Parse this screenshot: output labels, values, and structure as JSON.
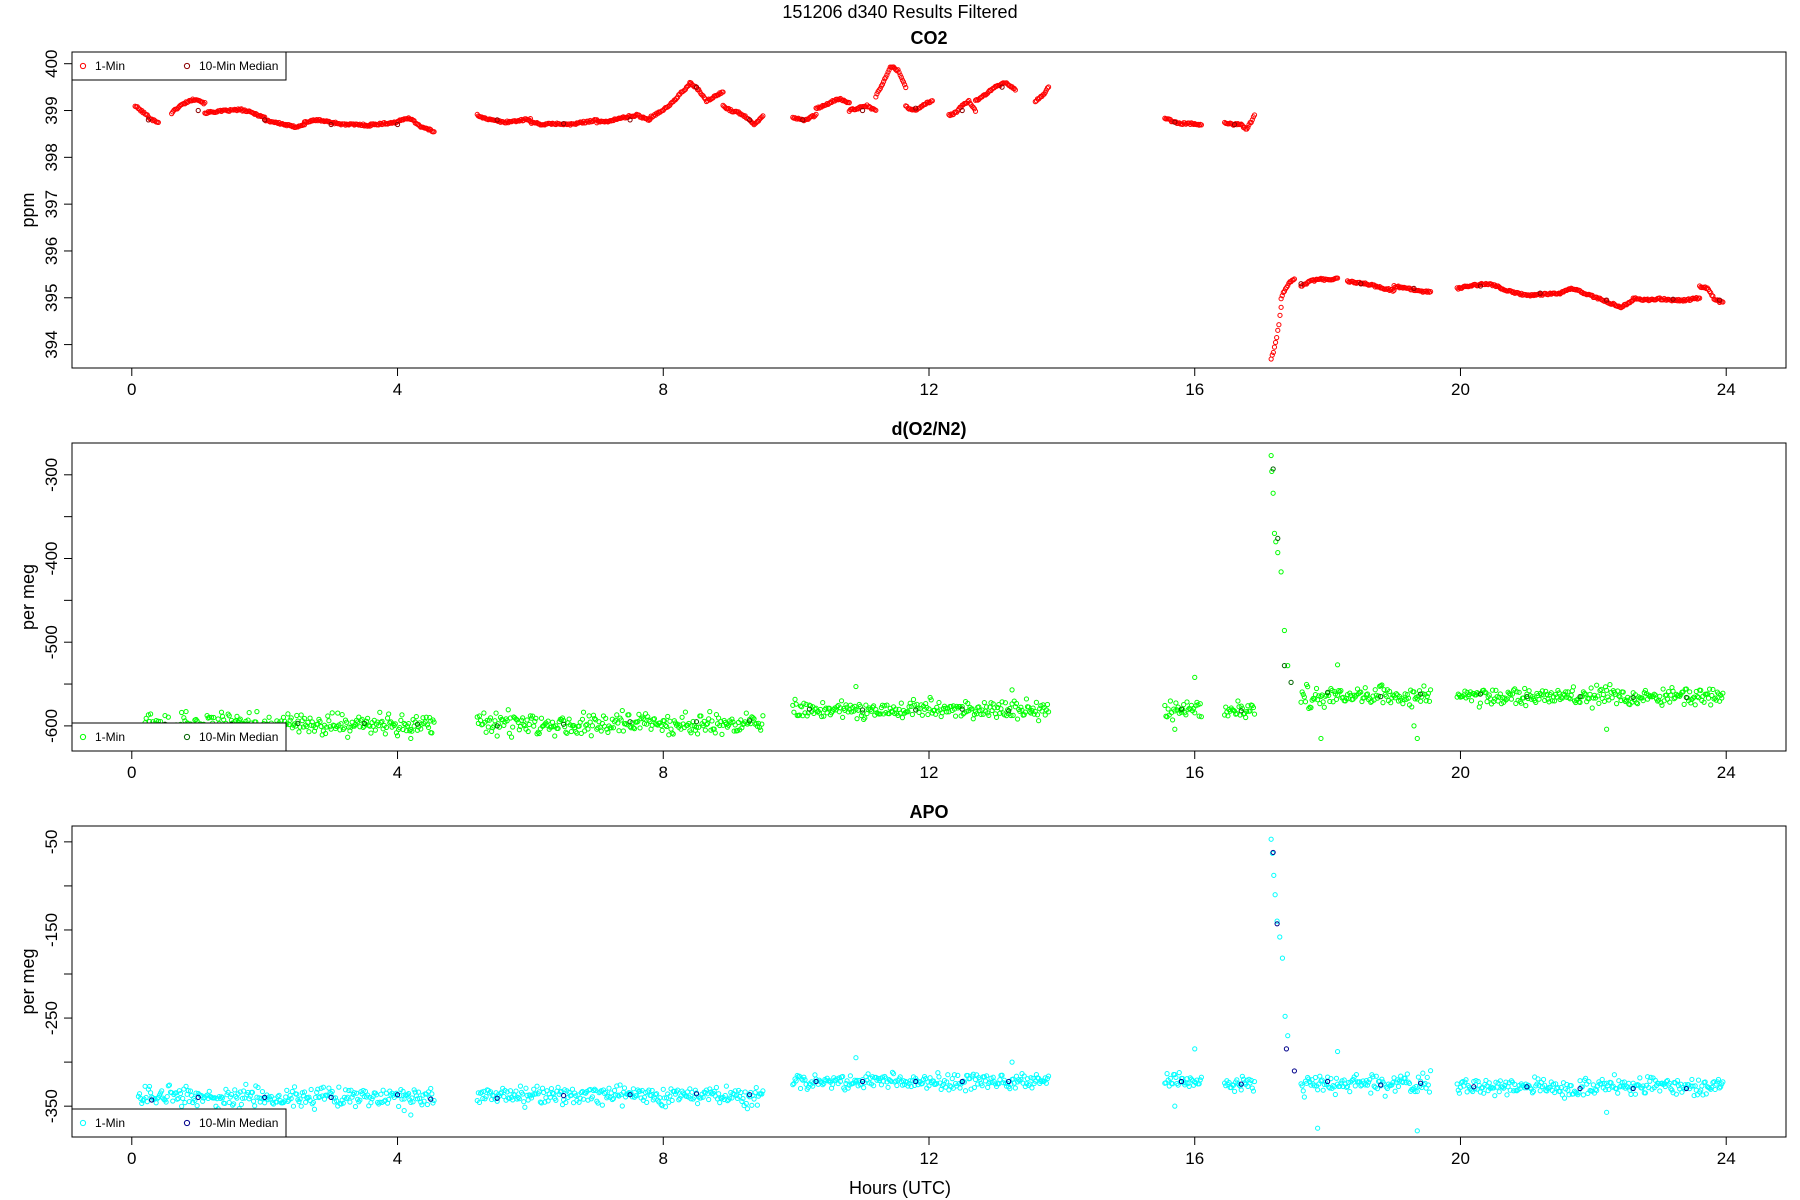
{
  "figure": {
    "title": "151206   d340   Results Filtered",
    "xlabel": "Hours (UTC)",
    "background": "#ffffff"
  },
  "chart_data": [
    {
      "type": "scatter",
      "title": "CO2",
      "xlabel": "",
      "ylabel": "ppm",
      "xlim": [
        -0.9,
        24.9
      ],
      "ylim": [
        393.5,
        400.25
      ],
      "x_ticks": [
        0,
        4,
        8,
        12,
        16,
        20,
        24
      ],
      "y_ticks": [
        394,
        395,
        396,
        397,
        398,
        399,
        400
      ],
      "legend": {
        "position": "top-left",
        "entries": [
          {
            "label": "1-Min",
            "color": "#ff0000"
          },
          {
            "label": "10-Min Median",
            "color": "#8b0000"
          }
        ]
      },
      "series": [
        {
          "name": "1-Min",
          "color": "#ff0000",
          "marker": "open-circle",
          "segments": [
            {
              "x0": 0.05,
              "x1": 0.4,
              "y": [
                399.1,
                399.0,
                398.9,
                398.8,
                398.75
              ]
            },
            {
              "x0": 0.6,
              "x1": 1.1,
              "y": [
                398.95,
                399.1,
                399.2,
                399.25,
                399.15
              ]
            },
            {
              "x0": 1.1,
              "x1": 2.0,
              "y": [
                398.95,
                398.98,
                399.0,
                399.02,
                398.95,
                398.85
              ]
            },
            {
              "x0": 2.0,
              "x1": 2.6,
              "y": [
                398.8,
                398.75,
                398.7,
                398.65,
                398.7
              ]
            },
            {
              "x0": 2.6,
              "x1": 3.6,
              "y": [
                398.75,
                398.8,
                398.75,
                398.7,
                398.7,
                398.68
              ]
            },
            {
              "x0": 3.6,
              "x1": 4.55,
              "y": [
                398.7,
                398.72,
                398.75,
                398.85,
                398.65,
                398.55
              ]
            },
            {
              "x0": 5.2,
              "x1": 6.0,
              "y": [
                398.9,
                398.8,
                398.75,
                398.78,
                398.82
              ]
            },
            {
              "x0": 6.0,
              "x1": 7.0,
              "y": [
                398.75,
                398.7,
                398.72,
                398.7,
                398.75,
                398.8
              ]
            },
            {
              "x0": 7.0,
              "x1": 7.8,
              "y": [
                398.75,
                398.78,
                398.85,
                398.9,
                398.8
              ]
            },
            {
              "x0": 7.8,
              "x1": 8.4,
              "y": [
                398.85,
                398.95,
                399.05,
                399.2,
                399.4,
                399.55
              ]
            },
            {
              "x0": 8.4,
              "x1": 8.9,
              "y": [
                399.6,
                399.45,
                399.2,
                399.3,
                399.4
              ]
            },
            {
              "x0": 8.9,
              "x1": 9.5,
              "y": [
                399.1,
                399.0,
                398.95,
                398.85,
                398.7,
                398.9
              ]
            },
            {
              "x0": 9.95,
              "x1": 10.3,
              "y": [
                398.85,
                398.8,
                398.9
              ]
            },
            {
              "x0": 10.3,
              "x1": 10.8,
              "y": [
                399.05,
                399.1,
                399.2,
                399.25,
                399.15
              ]
            },
            {
              "x0": 10.8,
              "x1": 11.2,
              "y": [
                399.0,
                399.05,
                399.1,
                399.0
              ]
            },
            {
              "x0": 11.2,
              "x1": 11.65,
              "y": [
                399.3,
                399.6,
                399.95,
                399.85,
                399.5
              ]
            },
            {
              "x0": 11.65,
              "x1": 12.05,
              "y": [
                399.1,
                399.0,
                399.05,
                399.15,
                399.2
              ]
            },
            {
              "x0": 12.3,
              "x1": 12.7,
              "y": [
                398.9,
                398.95,
                399.1,
                399.2,
                399.0
              ]
            },
            {
              "x0": 12.7,
              "x1": 13.3,
              "y": [
                399.2,
                399.35,
                399.5,
                399.6,
                399.45
              ]
            },
            {
              "x0": 13.6,
              "x1": 13.8,
              "y": [
                399.2,
                399.3,
                399.5
              ]
            },
            {
              "x0": 15.55,
              "x1": 16.1,
              "y": [
                398.85,
                398.75,
                398.72,
                398.72,
                398.7
              ]
            },
            {
              "x0": 16.45,
              "x1": 16.9,
              "y": [
                398.75,
                398.7,
                398.72,
                398.6,
                398.9
              ]
            },
            {
              "x0": 17.15,
              "x1": 17.3,
              "y": [
                393.7,
                393.85,
                394.1,
                394.4,
                394.8
              ]
            },
            {
              "x0": 17.3,
              "x1": 17.5,
              "y": [
                395.0,
                395.2,
                395.35,
                395.4
              ]
            },
            {
              "x0": 17.6,
              "x1": 18.15,
              "y": [
                395.25,
                395.35,
                395.4,
                395.38,
                395.42
              ]
            },
            {
              "x0": 18.3,
              "x1": 19.0,
              "y": [
                395.35,
                395.32,
                395.3,
                395.25,
                395.2,
                395.15
              ]
            },
            {
              "x0": 19.0,
              "x1": 19.55,
              "y": [
                395.25,
                395.2,
                395.15,
                395.12
              ]
            },
            {
              "x0": 19.95,
              "x1": 20.6,
              "y": [
                395.2,
                395.25,
                395.28,
                395.3,
                395.22
              ]
            },
            {
              "x0": 20.6,
              "x1": 21.5,
              "y": [
                395.2,
                395.1,
                395.05,
                395.08,
                395.1
              ]
            },
            {
              "x0": 21.5,
              "x1": 22.6,
              "y": [
                395.1,
                395.2,
                395.1,
                395.0,
                394.9,
                394.8,
                394.95
              ]
            },
            {
              "x0": 22.6,
              "x1": 23.6,
              "y": [
                395.0,
                394.95,
                394.98,
                394.95,
                394.95,
                395.0
              ]
            },
            {
              "x0": 23.6,
              "x1": 23.95,
              "y": [
                395.25,
                395.2,
                394.95,
                394.9
              ]
            }
          ]
        },
        {
          "name": "10-Min Median",
          "color": "#8b0000",
          "marker": "open-circle",
          "x": [
            0.25,
            1.0,
            2.0,
            3.0,
            4.0,
            5.5,
            6.5,
            7.5,
            8.5,
            9.3,
            10.1,
            11.0,
            11.8,
            12.5,
            13.1,
            15.7,
            16.6,
            17.6,
            18.5,
            19.3,
            20.3,
            21.2,
            22.2,
            23.2,
            23.9
          ],
          "y": [
            398.8,
            399.0,
            398.8,
            398.7,
            398.7,
            398.8,
            398.72,
            398.8,
            399.5,
            398.8,
            398.8,
            399.0,
            399.05,
            399.0,
            399.5,
            398.75,
            398.7,
            395.3,
            395.3,
            395.2,
            395.25,
            395.1,
            394.95,
            394.97,
            394.95
          ]
        }
      ]
    },
    {
      "type": "scatter",
      "title": "d(O2/N2)",
      "xlabel": "",
      "ylabel": "per meg",
      "xlim": [
        -0.9,
        24.9
      ],
      "ylim": [
        -630,
        -262
      ],
      "x_ticks": [
        0,
        4,
        8,
        12,
        16,
        20,
        24
      ],
      "y_ticks": [
        -600,
        -500,
        -400,
        -300
      ],
      "legend": {
        "position": "bottom-left",
        "entries": [
          {
            "label": "1-Min",
            "color": "#00ff00"
          },
          {
            "label": "10-Min Median",
            "color": "#006400"
          }
        ]
      },
      "series": [
        {
          "name": "1-Min",
          "color": "#00ff00",
          "marker": "open-circle",
          "segments": [
            {
              "x0": 0.2,
              "x1": 4.55,
              "center": -598,
              "spread": 14
            },
            {
              "x0": 5.2,
              "x1": 9.5,
              "center": -597,
              "spread": 14
            },
            {
              "x0": 9.95,
              "x1": 13.8,
              "center": -581,
              "spread": 12
            },
            {
              "x0": 15.55,
              "x1": 16.1,
              "center": -580,
              "spread": 12
            },
            {
              "x0": 16.45,
              "x1": 16.9,
              "center": -582,
              "spread": 10
            },
            {
              "x0": 17.6,
              "x1": 19.55,
              "center": -565,
              "spread": 14
            },
            {
              "x0": 19.95,
              "x1": 23.95,
              "center": -565,
              "spread": 12
            }
          ],
          "points_x": [
            0.75,
            4.2,
            4.5,
            10.9,
            13.25,
            16.0,
            15.7,
            17.15,
            17.16,
            17.18,
            17.2,
            17.22,
            17.25,
            17.3,
            17.35,
            17.4,
            17.9,
            18.15,
            19.35,
            19.3,
            22.2
          ],
          "points_y": [
            -584,
            -615,
            -608,
            -553,
            -557,
            -542,
            -604,
            -277,
            -296,
            -322,
            -370,
            -380,
            -393,
            -416,
            -486,
            -528,
            -615,
            -527,
            -615,
            -600,
            -604
          ]
        },
        {
          "name": "10-Min Median",
          "color": "#006400",
          "marker": "open-circle",
          "x": [
            0.5,
            1.5,
            2.5,
            3.5,
            4.3,
            5.5,
            6.5,
            7.5,
            8.5,
            9.3,
            10.2,
            11.0,
            11.8,
            12.5,
            13.2,
            15.8,
            16.7,
            17.18,
            17.25,
            17.35,
            17.45,
            18.0,
            18.8,
            19.4,
            20.3,
            21.0,
            21.8,
            22.6,
            23.4
          ],
          "y": [
            -598,
            -598,
            -597,
            -597,
            -598,
            -600,
            -598,
            -595,
            -595,
            -594,
            -580,
            -581,
            -581,
            -580,
            -582,
            -580,
            -582,
            -293,
            -376,
            -528,
            -548,
            -560,
            -565,
            -562,
            -562,
            -565,
            -565,
            -566,
            -566
          ]
        }
      ]
    },
    {
      "type": "scatter",
      "title": "APO",
      "xlabel": "",
      "ylabel": "per meg",
      "xlim": [
        -0.9,
        24.9
      ],
      "ylim": [
        -385,
        -32
      ],
      "x_ticks": [
        0,
        4,
        8,
        12,
        16,
        20,
        24
      ],
      "y_ticks": [
        -350,
        -250,
        -150,
        -50
      ],
      "legend": {
        "position": "bottom-left",
        "entries": [
          {
            "label": "1-Min",
            "color": "#00ffff"
          },
          {
            "label": "10-Min Median",
            "color": "#00008b"
          }
        ]
      },
      "series": [
        {
          "name": "1-Min",
          "color": "#00ffff",
          "marker": "open-circle",
          "segments": [
            {
              "x0": 0.1,
              "x1": 4.55,
              "center": -340,
              "spread": 12
            },
            {
              "x0": 5.2,
              "x1": 9.5,
              "center": -338,
              "spread": 12
            },
            {
              "x0": 9.95,
              "x1": 13.8,
              "center": -322,
              "spread": 10
            },
            {
              "x0": 15.55,
              "x1": 16.1,
              "center": -322,
              "spread": 10
            },
            {
              "x0": 16.45,
              "x1": 16.9,
              "center": -325,
              "spread": 8
            },
            {
              "x0": 17.6,
              "x1": 19.55,
              "center": -325,
              "spread": 12
            },
            {
              "x0": 19.95,
              "x1": 23.95,
              "center": -328,
              "spread": 11
            }
          ],
          "points_x": [
            4.2,
            4.1,
            10.9,
            13.25,
            16.0,
            15.7,
            17.15,
            17.17,
            17.19,
            17.21,
            17.24,
            17.28,
            17.32,
            17.36,
            17.4,
            17.85,
            18.15,
            19.35,
            22.2
          ],
          "points_y": [
            -360,
            -355,
            -295,
            -300,
            -285,
            -350,
            -47,
            -63,
            -88,
            -110,
            -140,
            -158,
            -182,
            -248,
            -270,
            -375,
            -288,
            -378,
            -357
          ]
        },
        {
          "name": "10-Min Median",
          "color": "#00008b",
          "marker": "open-circle",
          "x": [
            0.3,
            1.0,
            2.0,
            3.0,
            4.0,
            4.5,
            5.5,
            6.5,
            7.5,
            8.5,
            9.3,
            10.3,
            11.0,
            11.8,
            12.5,
            13.2,
            15.8,
            16.7,
            17.18,
            17.24,
            17.38,
            17.5,
            18.0,
            18.8,
            19.4,
            20.2,
            21.0,
            21.8,
            22.6,
            23.4
          ],
          "y": [
            -343,
            -340,
            -340,
            -340,
            -337,
            -342,
            -341,
            -338,
            -337,
            -336,
            -337,
            -322,
            -322,
            -322,
            -322,
            -322,
            -322,
            -325,
            -62,
            -143,
            -285,
            -310,
            -322,
            -326,
            -324,
            -328,
            -328,
            -330,
            -330,
            -330
          ]
        }
      ]
    }
  ]
}
